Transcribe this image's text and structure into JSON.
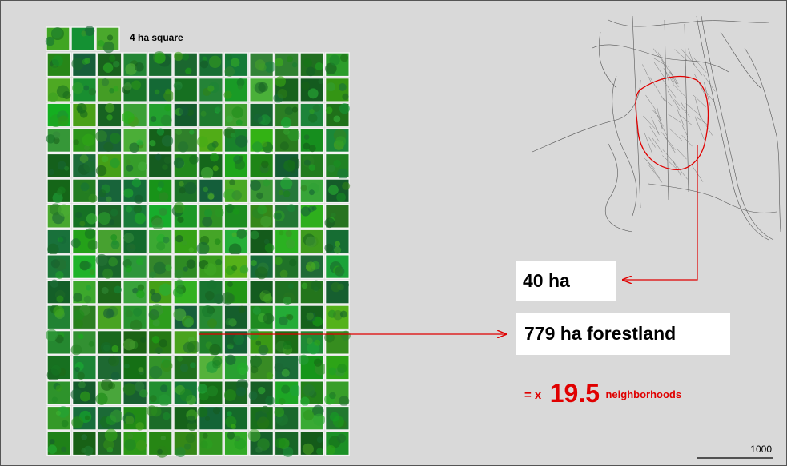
{
  "legend": {
    "label": "4 ha square"
  },
  "labels": {
    "area": "40 ha",
    "forest": "779 ha forestland",
    "ratio_prefix": "= x",
    "ratio": "19.5",
    "ratio_suffix": "neighborhoods"
  },
  "scale_bar": {
    "label": "1000"
  }
}
